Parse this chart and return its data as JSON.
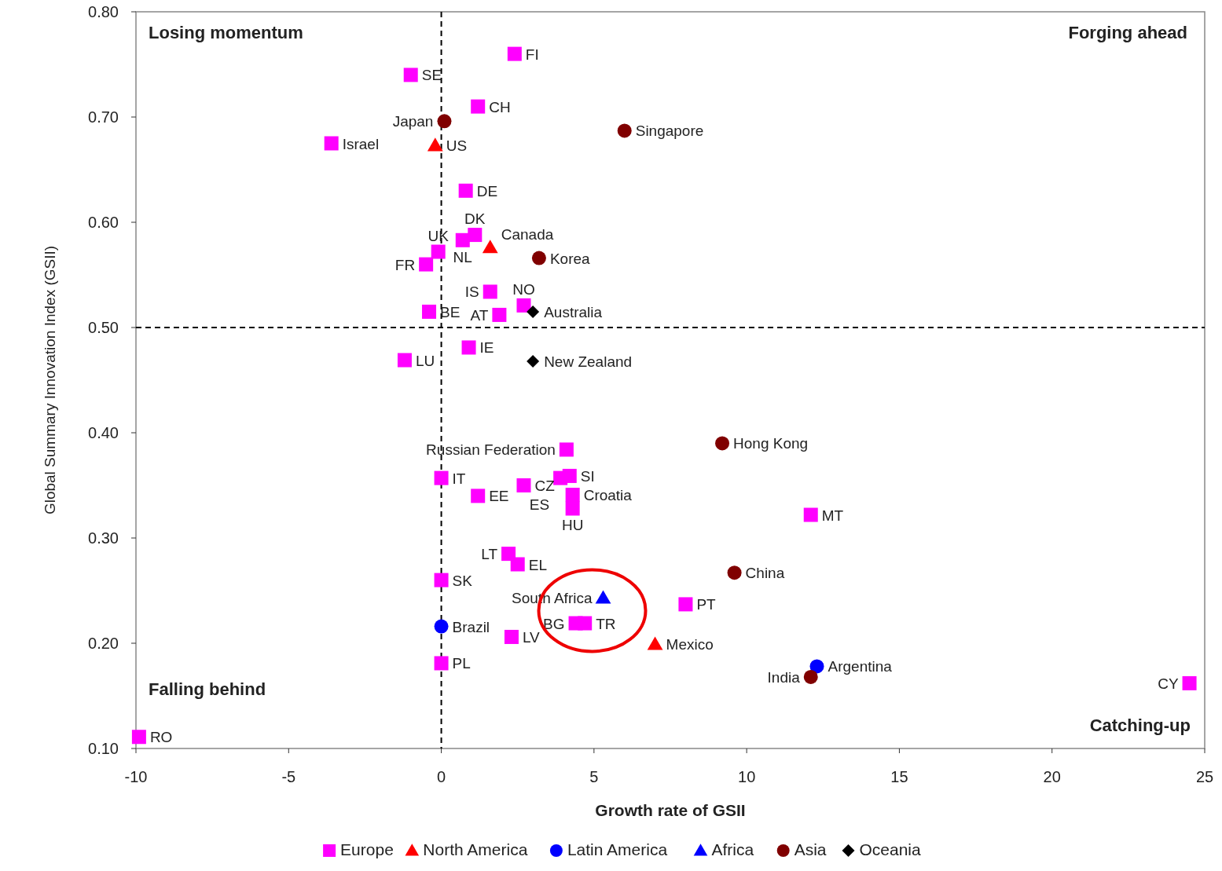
{
  "chart_data": {
    "type": "scatter",
    "xlabel": "Growth rate of GSII",
    "ylabel": "Global Summary Innovation Index (GSII)",
    "xlim": [
      -10,
      25
    ],
    "xticks": [
      -10,
      -5,
      0,
      5,
      10,
      15,
      20,
      25
    ],
    "ylim": [
      0.1,
      0.8
    ],
    "yticks": [
      {
        "value": 0.1,
        "label": "0.10"
      },
      {
        "value": 0.2,
        "label": "0.20"
      },
      {
        "value": 0.3,
        "label": "0.30"
      },
      {
        "value": 0.4,
        "label": "0.40"
      },
      {
        "value": 0.5,
        "label": "0.50"
      },
      {
        "value": 0.6,
        "label": "0.60"
      },
      {
        "value": 0.7,
        "label": "0.70"
      },
      {
        "value": 0.8,
        "label": "0.80"
      }
    ],
    "grid": false,
    "legend": "bottom",
    "ref_lines": [
      {
        "axis": "x",
        "value": 0,
        "line_style": "dashed"
      },
      {
        "axis": "y",
        "value": 0.5,
        "line_style": "dashed"
      }
    ],
    "series": [
      {
        "name": "Europe",
        "color": "#ff00ff",
        "marker": "square",
        "x": [
          2.4,
          -1.0,
          1.2,
          -3.6,
          0.8,
          0.7,
          1.1,
          -0.1,
          -0.5,
          1.6,
          2.7,
          -0.4,
          1.9,
          0.9,
          -1.2,
          4.1,
          0.0,
          2.7,
          3.9,
          4.2,
          1.2,
          4.3,
          4.3,
          12.1,
          2.5,
          2.2,
          0.0,
          8.0,
          4.7,
          4.4,
          2.3,
          0.0,
          24.5,
          -9.9
        ],
        "values": [
          0.76,
          0.74,
          0.71,
          0.675,
          0.63,
          0.583,
          0.588,
          0.572,
          0.56,
          0.534,
          0.521,
          0.515,
          0.512,
          0.481,
          0.469,
          0.384,
          0.357,
          0.35,
          0.357,
          0.359,
          0.34,
          0.341,
          0.328,
          0.322,
          0.275,
          0.285,
          0.26,
          0.237,
          0.219,
          0.219,
          0.206,
          0.181,
          0.162,
          0.111
        ]
      },
      {
        "name": "North America",
        "color": "#ff0000",
        "marker": "triangle",
        "x": [
          -0.2,
          1.6,
          7.0
        ],
        "values": [
          0.673,
          0.576,
          0.199
        ]
      },
      {
        "name": "Latin America",
        "color": "#0000ff",
        "marker": "circle",
        "x": [
          0.0,
          12.3
        ],
        "values": [
          0.216,
          0.178
        ]
      },
      {
        "name": "Africa",
        "color": "#0000ff",
        "marker": "triangle",
        "x": [
          5.3
        ],
        "values": [
          0.243
        ]
      },
      {
        "name": "Asia",
        "color": "#800000",
        "marker": "circle",
        "x": [
          0.1,
          6.0,
          3.2,
          9.2,
          9.6,
          12.1
        ],
        "values": [
          0.696,
          0.687,
          0.566,
          0.39,
          0.267,
          0.168
        ]
      },
      {
        "name": "Oceania",
        "color": "#000000",
        "marker": "diamond",
        "x": [
          3.0,
          3.0
        ],
        "values": [
          0.515,
          0.468
        ]
      }
    ],
    "annotations": [
      "Losing momentum",
      "Forging ahead",
      "Falling behind",
      "Catching-up",
      {
        "text": "FI",
        "x": 2.4,
        "y": 0.76
      },
      {
        "text": "SE",
        "x": -1.0,
        "y": 0.74
      },
      {
        "text": "CH",
        "x": 1.2,
        "y": 0.71
      },
      {
        "text": "Israel",
        "x": -3.6,
        "y": 0.675
      },
      {
        "text": "DE",
        "x": 0.8,
        "y": 0.63
      },
      {
        "text": "NL",
        "x": 0.7,
        "y": 0.583
      },
      {
        "text": "DK",
        "x": 1.1,
        "y": 0.588
      },
      {
        "text": "UK",
        "x": -0.1,
        "y": 0.572
      },
      {
        "text": "FR",
        "x": -0.5,
        "y": 0.56
      },
      {
        "text": "IS",
        "x": 1.6,
        "y": 0.534
      },
      {
        "text": "NO",
        "x": 2.7,
        "y": 0.521
      },
      {
        "text": "BE",
        "x": -0.4,
        "y": 0.515
      },
      {
        "text": "AT",
        "x": 1.9,
        "y": 0.512
      },
      {
        "text": "IE",
        "x": 0.9,
        "y": 0.481
      },
      {
        "text": "LU",
        "x": -1.2,
        "y": 0.469
      },
      {
        "text": "Russian Federation",
        "x": 4.1,
        "y": 0.384
      },
      {
        "text": "IT",
        "x": 0.0,
        "y": 0.357
      },
      {
        "text": "CZ",
        "x": 2.7,
        "y": 0.35
      },
      {
        "text": "ES",
        "x": 3.9,
        "y": 0.357
      },
      {
        "text": "SI",
        "x": 4.2,
        "y": 0.359
      },
      {
        "text": "EE",
        "x": 1.2,
        "y": 0.34
      },
      {
        "text": "Croatia",
        "x": 4.3,
        "y": 0.341
      },
      {
        "text": "HU",
        "x": 4.3,
        "y": 0.328
      },
      {
        "text": "MT",
        "x": 12.1,
        "y": 0.322
      },
      {
        "text": "EL",
        "x": 2.5,
        "y": 0.275
      },
      {
        "text": "LT",
        "x": 2.2,
        "y": 0.285
      },
      {
        "text": "SK",
        "x": 0.0,
        "y": 0.26
      },
      {
        "text": "PT",
        "x": 8.0,
        "y": 0.237
      },
      {
        "text": "TR",
        "x": 4.7,
        "y": 0.219
      },
      {
        "text": "BG",
        "x": 4.4,
        "y": 0.219
      },
      {
        "text": "LV",
        "x": 2.3,
        "y": 0.206
      },
      {
        "text": "PL",
        "x": 0.0,
        "y": 0.181
      },
      {
        "text": "CY",
        "x": 24.5,
        "y": 0.162
      },
      {
        "text": "RO",
        "x": -9.9,
        "y": 0.111
      },
      {
        "text": "US",
        "x": -0.2,
        "y": 0.673
      },
      {
        "text": "Canada",
        "x": 1.6,
        "y": 0.576
      },
      {
        "text": "Mexico",
        "x": 7.0,
        "y": 0.199
      },
      {
        "text": "Brazil",
        "x": 0.0,
        "y": 0.216
      },
      {
        "text": "Argentina",
        "x": 12.3,
        "y": 0.178
      },
      {
        "text": "South Africa",
        "x": 5.3,
        "y": 0.243
      },
      {
        "text": "Japan",
        "x": 0.1,
        "y": 0.696
      },
      {
        "text": "Singapore",
        "x": 6.0,
        "y": 0.687
      },
      {
        "text": "Korea",
        "x": 3.2,
        "y": 0.566
      },
      {
        "text": "Hong Kong",
        "x": 9.2,
        "y": 0.39
      },
      {
        "text": "China",
        "x": 9.6,
        "y": 0.267
      },
      {
        "text": "India",
        "x": 12.1,
        "y": 0.168
      },
      {
        "text": "Australia",
        "x": 3.0,
        "y": 0.515
      },
      {
        "text": "New Zealand",
        "x": 3.0,
        "y": 0.468
      }
    ]
  }
}
